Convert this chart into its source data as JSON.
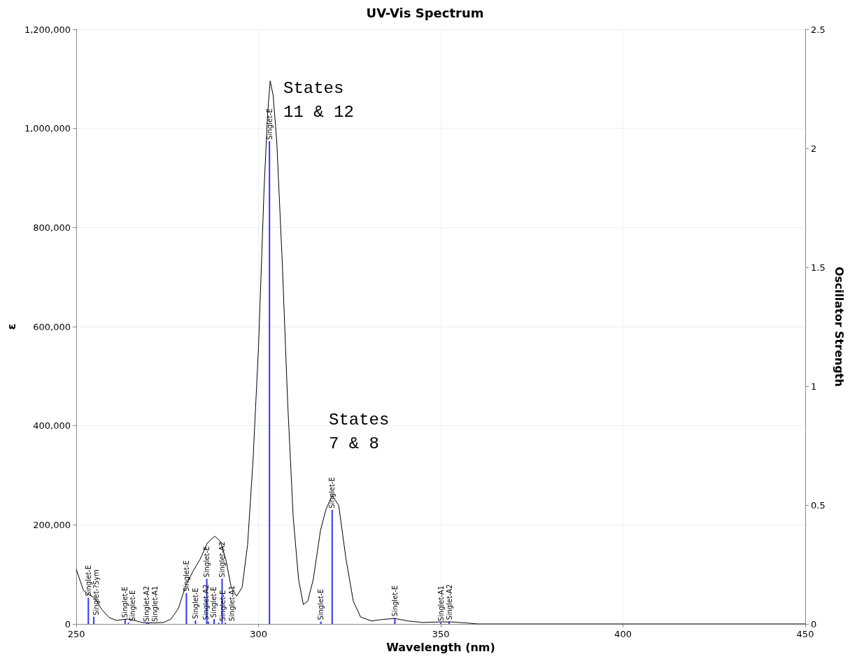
{
  "chart_data": {
    "type": "line",
    "title": "UV-Vis Spectrum",
    "xlabel": "Wavelength (nm)",
    "ylabel": "ε",
    "y2label": "Oscillator Strength",
    "xlim": [
      250,
      450
    ],
    "xticks": [
      250,
      300,
      350,
      400,
      450
    ],
    "ylim": [
      0,
      1200000
    ],
    "yticks": [
      0,
      {
        "value": 200000,
        "label": "200,000"
      },
      {
        "value": 400000,
        "label": "400,000"
      },
      {
        "value": 600000,
        "label": "600,000"
      },
      {
        "value": 800000,
        "label": "800,000"
      },
      {
        "value": 1000000,
        "label": "1,000,000"
      },
      {
        "value": 1200000,
        "label": "1,200,000"
      }
    ],
    "y2lim": [
      0,
      2.5
    ],
    "y2ticks": [
      0,
      0.5,
      1,
      1.5,
      2,
      2.5
    ],
    "grid": true,
    "marker": "none",
    "line_style": "solid",
    "annotations": [
      "States\n11 & 12",
      "States\n7 & 8"
    ],
    "series": [
      {
        "color": "#000000",
        "x": [
          250,
          252,
          253.3,
          255,
          257,
          259,
          261,
          264,
          266,
          268,
          271,
          274,
          276,
          278,
          280,
          282,
          284,
          286,
          288,
          289.5,
          291,
          292.5,
          294,
          295.5,
          297,
          298.5,
          300,
          301.5,
          302.5,
          303.2,
          304,
          305,
          306.5,
          308,
          309.5,
          311,
          312.3,
          313.5,
          315,
          317,
          318.5,
          320.2,
          322,
          324,
          326,
          328,
          331,
          334,
          337.4,
          341,
          345,
          350,
          353,
          357,
          360,
          450
        ],
        "values": [
          110000,
          67000,
          60000,
          53000,
          29000,
          13000,
          7000,
          10000,
          7000,
          3000,
          2000,
          3000,
          10000,
          31000,
          77000,
          106000,
          131000,
          164000,
          177000,
          167000,
          131000,
          74000,
          56000,
          74000,
          160000,
          331000,
          560000,
          874000,
          1031000,
          1096000,
          1067000,
          974000,
          731000,
          446000,
          217000,
          89000,
          39000,
          46000,
          89000,
          189000,
          231000,
          260000,
          239000,
          131000,
          46000,
          14000,
          6000,
          9000,
          11000,
          6000,
          3000,
          4000,
          4000,
          2000,
          0,
          0
        ]
      },
      {
        "type": "bar",
        "axis": "y2",
        "color": "#3333ff",
        "x": [
          253.3,
          254.8,
          263.4,
          264.3,
          269.3,
          269.8,
          280.2,
          282.7,
          285.8,
          286.2,
          287.8,
          289.1,
          290,
          290.9,
          303,
          317.1,
          320.2,
          337.4,
          350,
          352.3
        ],
        "values": [
          0.11,
          0.03,
          0.02,
          0.005,
          0.003,
          0.003,
          0.13,
          0.015,
          0.19,
          0.01,
          0.02,
          0.005,
          0.19,
          0.005,
          2.03,
          0.01,
          0.48,
          0.025,
          0.005,
          0.01
        ],
        "value_labels": [
          "Singlet-E",
          "Singlet-?Sym",
          "Singlet-E",
          "Singlet-E",
          "Singlet-A2",
          "Singlet-A1",
          "Singlet-E",
          "Singlet-E",
          "Singlet-E",
          "Singlet-A2",
          "Singlet-E",
          "Singlet-E",
          "Singlet-A2",
          "Singlet-A1",
          "Singlet-E",
          "Singlet-E",
          "Singlet-E",
          "Singlet-E",
          "Singlet-A1",
          "Singlet-A2"
        ]
      }
    ]
  }
}
